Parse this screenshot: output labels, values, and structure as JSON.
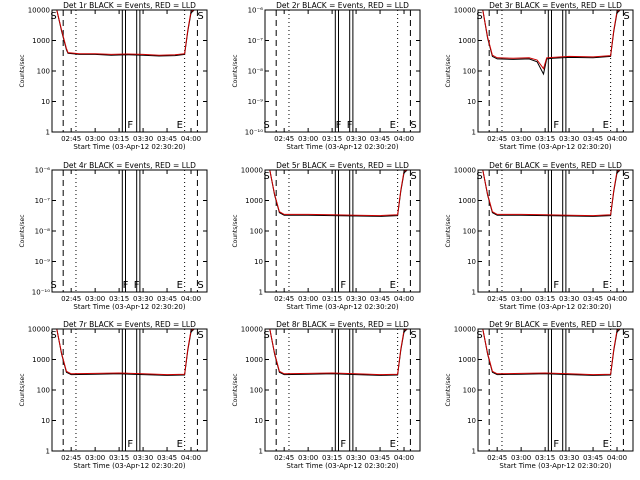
{
  "chart_data": [
    {
      "type": "line",
      "title": "Det 1r BLACK = Events, RED = LLD",
      "xlabel": "Start Time (03-Apr-12 02:30:20)",
      "ylabel": "Counts/sec",
      "yscale": "log",
      "xlim": [
        "02:33",
        "04:10"
      ],
      "ylim": [
        1,
        10000
      ],
      "x_ticks": [
        "02:45",
        "03:00",
        "03:15",
        "03:30",
        "03:45",
        "04:00"
      ],
      "y_ticks": [
        "1",
        "10",
        "100",
        "1000",
        "10000"
      ],
      "flags": [
        "S",
        "F",
        "E",
        "S"
      ],
      "series": [
        {
          "name": "Events",
          "color": "#000000",
          "x": [
            "02:36",
            "02:39",
            "02:42",
            "02:43",
            "02:50",
            "03:00",
            "03:10",
            "03:20",
            "03:30",
            "03:40",
            "03:50",
            "03:56",
            "03:58",
            "04:00",
            "04:02"
          ],
          "values": [
            10000,
            2000,
            500,
            380,
            350,
            350,
            330,
            340,
            330,
            310,
            320,
            350,
            2000,
            8000,
            12000
          ]
        },
        {
          "name": "LLD",
          "color": "#cc0000",
          "x": [
            "02:36",
            "02:39",
            "02:42",
            "02:43",
            "02:50",
            "03:00",
            "03:10",
            "03:20",
            "03:30",
            "03:40",
            "03:50",
            "03:56",
            "03:58",
            "04:00",
            "04:02"
          ],
          "values": [
            11000,
            2200,
            550,
            400,
            370,
            370,
            350,
            360,
            350,
            330,
            340,
            370,
            2200,
            9000,
            13000
          ]
        }
      ],
      "dashed_lines": [
        "02:40",
        "04:04"
      ],
      "dotted_lines": [
        "02:48",
        "03:56"
      ],
      "solid_lines": [
        "03:17",
        "03:19",
        "03:26",
        "03:28"
      ]
    },
    {
      "type": "line",
      "title": "Det 2r BLACK = Events, RED = LLD",
      "xlabel": "Start Time (03-Apr-12 02:30:20)",
      "ylabel": "Counts/sec",
      "yscale": "log",
      "xlim": [
        "02:33",
        "04:10"
      ],
      "ylim": [
        1e-10,
        1e-06
      ],
      "x_ticks": [
        "02:45",
        "03:00",
        "03:15",
        "03:30",
        "03:45",
        "04:00"
      ],
      "y_ticks": [
        "10⁻¹⁰",
        "10⁻⁹",
        "10⁻⁸",
        "10⁻⁷",
        "10⁻⁶"
      ],
      "flags": [
        "S",
        "F",
        "F",
        "E",
        "S"
      ],
      "series": [],
      "dashed_lines": [
        "02:40",
        "04:04"
      ],
      "dotted_lines": [
        "02:48",
        "03:56"
      ],
      "solid_lines": [
        "03:17",
        "03:19",
        "03:26",
        "03:28"
      ]
    },
    {
      "type": "line",
      "title": "Det 3r BLACK = Events, RED = LLD",
      "xlabel": "Start Time (03-Apr-12 02:30:20)",
      "ylabel": "Counts/sec",
      "yscale": "log",
      "xlim": [
        "02:33",
        "04:10"
      ],
      "ylim": [
        1,
        10000
      ],
      "x_ticks": [
        "02:45",
        "03:00",
        "03:15",
        "03:30",
        "03:45",
        "04:00"
      ],
      "y_ticks": [
        "1",
        "10",
        "100",
        "1000",
        "10000"
      ],
      "flags": [
        "S",
        "F",
        "E",
        "S"
      ],
      "series": [
        {
          "name": "Events",
          "color": "#000000",
          "x": [
            "02:36",
            "02:39",
            "02:42",
            "02:45",
            "02:55",
            "03:05",
            "03:10",
            "03:14",
            "03:16",
            "03:20",
            "03:30",
            "03:45",
            "03:56",
            "03:58",
            "04:00",
            "04:02"
          ],
          "values": [
            10000,
            1200,
            300,
            250,
            240,
            250,
            200,
            80,
            250,
            260,
            280,
            270,
            300,
            2000,
            8000,
            12000
          ]
        },
        {
          "name": "LLD",
          "color": "#cc0000",
          "x": [
            "02:36",
            "02:39",
            "02:42",
            "02:45",
            "02:55",
            "03:05",
            "03:10",
            "03:14",
            "03:16",
            "03:20",
            "03:30",
            "03:45",
            "03:56",
            "03:58",
            "04:00",
            "04:02"
          ],
          "values": [
            11000,
            1300,
            330,
            270,
            260,
            270,
            230,
            120,
            270,
            280,
            300,
            290,
            320,
            2200,
            9000,
            13000
          ]
        }
      ],
      "dashed_lines": [
        "02:40",
        "04:04"
      ],
      "dotted_lines": [
        "02:48",
        "03:56"
      ],
      "solid_lines": [
        "03:17",
        "03:19",
        "03:26",
        "03:28"
      ]
    },
    {
      "type": "line",
      "title": "Det 4r BLACK = Events, RED = LLD",
      "xlabel": "Start Time (03-Apr-12 02:30:20)",
      "ylabel": "Counts/sec",
      "yscale": "log",
      "xlim": [
        "02:33",
        "04:10"
      ],
      "ylim": [
        1e-10,
        1e-06
      ],
      "x_ticks": [
        "02:45",
        "03:00",
        "03:15",
        "03:30",
        "03:45",
        "04:00"
      ],
      "y_ticks": [
        "10⁻¹⁰",
        "10⁻⁹",
        "10⁻⁸",
        "10⁻⁷",
        "10⁻⁶"
      ],
      "flags": [
        "S",
        "F",
        "F",
        "E",
        "S"
      ],
      "series": [],
      "dashed_lines": [
        "02:40",
        "04:04"
      ],
      "dotted_lines": [
        "02:48",
        "03:56"
      ],
      "solid_lines": [
        "03:17",
        "03:19",
        "03:26",
        "03:28"
      ]
    },
    {
      "type": "line",
      "title": "Det 5r BLACK = Events, RED = LLD",
      "xlabel": "Start Time (03-Apr-12 02:30:20)",
      "ylabel": "Counts/sec",
      "yscale": "log",
      "xlim": [
        "02:33",
        "04:10"
      ],
      "ylim": [
        1,
        10000
      ],
      "x_ticks": [
        "02:45",
        "03:00",
        "03:15",
        "03:30",
        "03:45",
        "04:00"
      ],
      "y_ticks": [
        "1",
        "10",
        "100",
        "1000",
        "10000"
      ],
      "flags": [
        "S",
        "F",
        "E",
        "S"
      ],
      "series": [
        {
          "name": "Events",
          "color": "#000000",
          "x": [
            "02:36",
            "02:39",
            "02:42",
            "02:45",
            "03:00",
            "03:15",
            "03:30",
            "03:45",
            "03:56",
            "03:58",
            "04:00",
            "04:02"
          ],
          "values": [
            10000,
            1500,
            400,
            330,
            330,
            320,
            310,
            300,
            320,
            2000,
            8000,
            12000
          ]
        },
        {
          "name": "LLD",
          "color": "#cc0000",
          "x": [
            "02:36",
            "02:39",
            "02:42",
            "02:45",
            "03:00",
            "03:15",
            "03:30",
            "03:45",
            "03:56",
            "03:58",
            "04:00",
            "04:02"
          ],
          "values": [
            11000,
            1600,
            430,
            350,
            350,
            340,
            330,
            320,
            340,
            2200,
            9000,
            13000
          ]
        }
      ],
      "dashed_lines": [
        "02:40",
        "04:04"
      ],
      "dotted_lines": [
        "02:48",
        "03:56"
      ],
      "solid_lines": [
        "03:17",
        "03:19",
        "03:26",
        "03:28"
      ]
    },
    {
      "type": "line",
      "title": "Det 6r BLACK = Events, RED = LLD",
      "xlabel": "Start Time (03-Apr-12 02:30:20)",
      "ylabel": "Counts/sec",
      "yscale": "log",
      "xlim": [
        "02:33",
        "04:10"
      ],
      "ylim": [
        1,
        10000
      ],
      "x_ticks": [
        "02:45",
        "03:00",
        "03:15",
        "03:30",
        "03:45",
        "04:00"
      ],
      "y_ticks": [
        "1",
        "10",
        "100",
        "1000",
        "10000"
      ],
      "flags": [
        "S",
        "F",
        "E",
        "S"
      ],
      "series": [
        {
          "name": "Events",
          "color": "#000000",
          "x": [
            "02:36",
            "02:39",
            "02:42",
            "02:45",
            "03:00",
            "03:15",
            "03:30",
            "03:45",
            "03:56",
            "03:58",
            "04:00",
            "04:02"
          ],
          "values": [
            10000,
            1500,
            400,
            330,
            330,
            320,
            310,
            300,
            320,
            2000,
            8000,
            12000
          ]
        },
        {
          "name": "LLD",
          "color": "#cc0000",
          "x": [
            "02:36",
            "02:39",
            "02:42",
            "02:45",
            "03:00",
            "03:15",
            "03:30",
            "03:45",
            "03:56",
            "03:58",
            "04:00",
            "04:02"
          ],
          "values": [
            11000,
            1600,
            430,
            350,
            350,
            340,
            330,
            320,
            340,
            2200,
            9000,
            13000
          ]
        }
      ],
      "dashed_lines": [
        "02:40",
        "04:04"
      ],
      "dotted_lines": [
        "02:48",
        "03:56"
      ],
      "solid_lines": [
        "03:17",
        "03:19",
        "03:26",
        "03:28"
      ]
    },
    {
      "type": "line",
      "title": "Det 7r BLACK = Events, RED = LLD",
      "xlabel": "Start Time (03-Apr-12 02:30:20)",
      "ylabel": "Counts/sec",
      "yscale": "log",
      "xlim": [
        "02:33",
        "04:10"
      ],
      "ylim": [
        1,
        10000
      ],
      "x_ticks": [
        "02:45",
        "03:00",
        "03:15",
        "03:30",
        "03:45",
        "04:00"
      ],
      "y_ticks": [
        "1",
        "10",
        "100",
        "1000",
        "10000"
      ],
      "flags": [
        "S",
        "F",
        "E",
        "S"
      ],
      "series": [
        {
          "name": "Events",
          "color": "#000000",
          "x": [
            "02:36",
            "02:39",
            "02:42",
            "02:45",
            "03:00",
            "03:15",
            "03:30",
            "03:45",
            "03:56",
            "03:58",
            "04:00",
            "04:02"
          ],
          "values": [
            10000,
            1500,
            380,
            320,
            330,
            340,
            320,
            300,
            310,
            2000,
            8000,
            12000
          ]
        },
        {
          "name": "LLD",
          "color": "#cc0000",
          "x": [
            "02:36",
            "02:39",
            "02:42",
            "02:45",
            "03:00",
            "03:15",
            "03:30",
            "03:45",
            "03:56",
            "03:58",
            "04:00",
            "04:02"
          ],
          "values": [
            11000,
            1600,
            410,
            340,
            350,
            360,
            340,
            320,
            330,
            2200,
            9000,
            13000
          ]
        }
      ],
      "dashed_lines": [
        "02:40",
        "04:04"
      ],
      "dotted_lines": [
        "02:48",
        "03:56"
      ],
      "solid_lines": [
        "03:17",
        "03:19",
        "03:26",
        "03:28"
      ]
    },
    {
      "type": "line",
      "title": "Det 8r BLACK = Events, RED = LLD",
      "xlabel": "Start Time (03-Apr-12 02:30:20)",
      "ylabel": "Counts/sec",
      "yscale": "log",
      "xlim": [
        "02:33",
        "04:10"
      ],
      "ylim": [
        1,
        10000
      ],
      "x_ticks": [
        "02:45",
        "03:00",
        "03:15",
        "03:30",
        "03:45",
        "04:00"
      ],
      "y_ticks": [
        "1",
        "10",
        "100",
        "1000",
        "10000"
      ],
      "flags": [
        "S",
        "F",
        "E",
        "S"
      ],
      "series": [
        {
          "name": "Events",
          "color": "#000000",
          "x": [
            "02:36",
            "02:39",
            "02:42",
            "02:45",
            "03:00",
            "03:15",
            "03:30",
            "03:45",
            "03:56",
            "03:58",
            "04:00",
            "04:02"
          ],
          "values": [
            10000,
            1500,
            380,
            320,
            330,
            340,
            320,
            300,
            310,
            2000,
            8000,
            12000
          ]
        },
        {
          "name": "LLD",
          "color": "#cc0000",
          "x": [
            "02:36",
            "02:39",
            "02:42",
            "02:45",
            "03:00",
            "03:15",
            "03:30",
            "03:45",
            "03:56",
            "03:58",
            "04:00",
            "04:02"
          ],
          "values": [
            11000,
            1600,
            410,
            340,
            350,
            360,
            340,
            320,
            330,
            2200,
            9000,
            13000
          ]
        }
      ],
      "dashed_lines": [
        "02:40",
        "04:04"
      ],
      "dotted_lines": [
        "02:48",
        "03:56"
      ],
      "solid_lines": [
        "03:17",
        "03:19",
        "03:26",
        "03:28"
      ]
    },
    {
      "type": "line",
      "title": "Det 9r BLACK = Events, RED = LLD",
      "xlabel": "Start Time (03-Apr-12 02:30:20)",
      "ylabel": "Counts/sec",
      "yscale": "log",
      "xlim": [
        "02:33",
        "04:10"
      ],
      "ylim": [
        1,
        10000
      ],
      "x_ticks": [
        "02:45",
        "03:00",
        "03:15",
        "03:30",
        "03:45",
        "04:00"
      ],
      "y_ticks": [
        "1",
        "10",
        "100",
        "1000",
        "10000"
      ],
      "flags": [
        "S",
        "F",
        "E",
        "S"
      ],
      "series": [
        {
          "name": "Events",
          "color": "#000000",
          "x": [
            "02:36",
            "02:39",
            "02:42",
            "02:45",
            "03:00",
            "03:15",
            "03:30",
            "03:45",
            "03:56",
            "03:58",
            "04:00",
            "04:02"
          ],
          "values": [
            10000,
            1500,
            380,
            320,
            330,
            340,
            320,
            300,
            310,
            2000,
            8000,
            12000
          ]
        },
        {
          "name": "LLD",
          "color": "#cc0000",
          "x": [
            "02:36",
            "02:39",
            "02:42",
            "02:45",
            "03:00",
            "03:15",
            "03:30",
            "03:45",
            "03:56",
            "03:58",
            "04:00",
            "04:02"
          ],
          "values": [
            11000,
            1600,
            410,
            340,
            350,
            360,
            340,
            320,
            330,
            2200,
            9000,
            13000
          ]
        }
      ],
      "dashed_lines": [
        "02:40",
        "04:04"
      ],
      "dotted_lines": [
        "02:48",
        "03:56"
      ],
      "solid_lines": [
        "03:17",
        "03:19",
        "03:26",
        "03:28"
      ]
    }
  ]
}
